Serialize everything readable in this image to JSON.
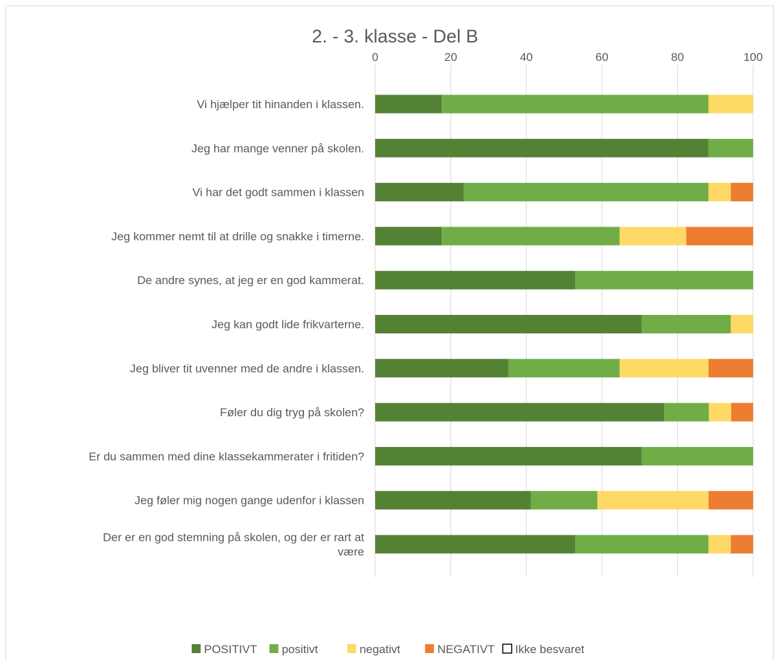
{
  "chart_data": {
    "type": "bar",
    "orientation": "horizontal",
    "stacked": true,
    "title": "2. - 3. klasse - Del B",
    "xlim": [
      0,
      100
    ],
    "xticks": [
      0,
      20,
      40,
      60,
      80,
      100
    ],
    "grid": true,
    "legend_position": "bottom",
    "categories": [
      "Vi hjælper tit hinanden i klassen.",
      "Jeg har mange venner på skolen.",
      "Vi har det godt sammen i klassen",
      "Jeg kommer nemt til at drille og snakke i timerne.",
      "De andre synes, at jeg er en god kammerat.",
      "Jeg kan godt lide frikvarterne.",
      "Jeg bliver tit uvenner med de andre i klassen.",
      "Føler du dig tryg på skolen?",
      "Er du sammen med dine klassekammerater i fritiden?",
      "Jeg føler mig nogen gange udenfor i klassen",
      "Der er en god stemning på skolen, og der er rart at være"
    ],
    "series": [
      {
        "name": "POSITIVT",
        "color": "#548235",
        "values": [
          17.6,
          88.2,
          23.5,
          17.6,
          52.9,
          70.6,
          35.3,
          76.5,
          70.6,
          41.2,
          52.9
        ]
      },
      {
        "name": "positivt",
        "color": "#70ad47",
        "values": [
          70.6,
          11.8,
          64.7,
          47.1,
          47.1,
          23.5,
          29.4,
          11.8,
          29.4,
          17.6,
          35.3
        ]
      },
      {
        "name": "negativt",
        "color": "#ffd966",
        "values": [
          11.8,
          0,
          5.9,
          17.6,
          0,
          5.9,
          23.5,
          5.9,
          0,
          29.4,
          5.9
        ]
      },
      {
        "name": "NEGATIVT",
        "color": "#ed7d31",
        "values": [
          0,
          0,
          5.9,
          17.7,
          0,
          0,
          11.8,
          5.8,
          0,
          11.8,
          5.9
        ]
      },
      {
        "name": "Ikke besvaret",
        "color": "#ffffff",
        "outline": "#000000",
        "values": [
          0,
          0,
          0,
          0,
          0,
          0,
          0,
          0,
          0,
          0,
          0
        ]
      }
    ]
  }
}
